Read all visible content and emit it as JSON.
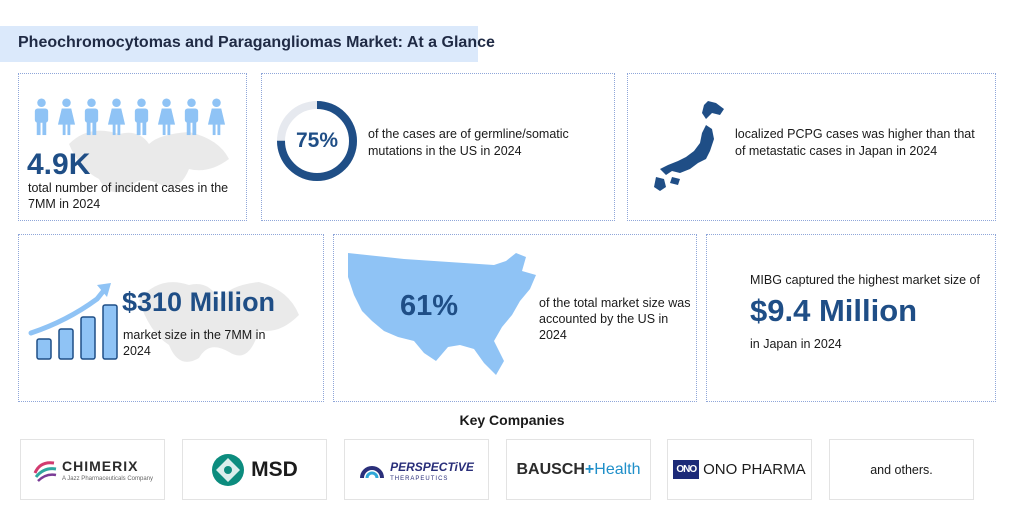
{
  "header": {
    "title": "Pheochromocytomas and Paragangliomas Market: At a Glance"
  },
  "cards": {
    "incident": {
      "value": "4.9K",
      "text": "total number of incident cases in the 7MM in 2024"
    },
    "mutations": {
      "value": "75%",
      "percent": 75,
      "text": "of the cases are of germline/somatic mutations in the US in 2024"
    },
    "japan": {
      "text": "localized PCPG cases was higher than that of metastatic cases in Japan in 2024"
    },
    "market": {
      "value": "$310 Million",
      "text": "market size in the 7MM in 2024"
    },
    "us_share": {
      "value": "61%",
      "text": "of the total market size was accounted by the US in 2024"
    },
    "mibg": {
      "lead": "MIBG captured the highest market size of",
      "value": "$9.4 Million",
      "tail": "in Japan in 2024"
    }
  },
  "key_companies": {
    "title": "Key Companies",
    "logos": {
      "chimerix": {
        "name": "CHIMERIX",
        "sub": "A Jazz Pharmaceuticals Company"
      },
      "msd": {
        "name": "MSD"
      },
      "perspective": {
        "name": "PERSPECTiVE",
        "sub": "THERAPEUTICS"
      },
      "bausch": {
        "part1": "BAUSCH",
        "plus": "+",
        "part2": "Health"
      },
      "ono": {
        "mark": "ONO",
        "name": "ONO PHARMA"
      }
    },
    "others": "and others."
  },
  "colors": {
    "primary": "#1f4e86",
    "accent_light": "#8fc3f5",
    "title_bg": "#dbe9fb"
  }
}
